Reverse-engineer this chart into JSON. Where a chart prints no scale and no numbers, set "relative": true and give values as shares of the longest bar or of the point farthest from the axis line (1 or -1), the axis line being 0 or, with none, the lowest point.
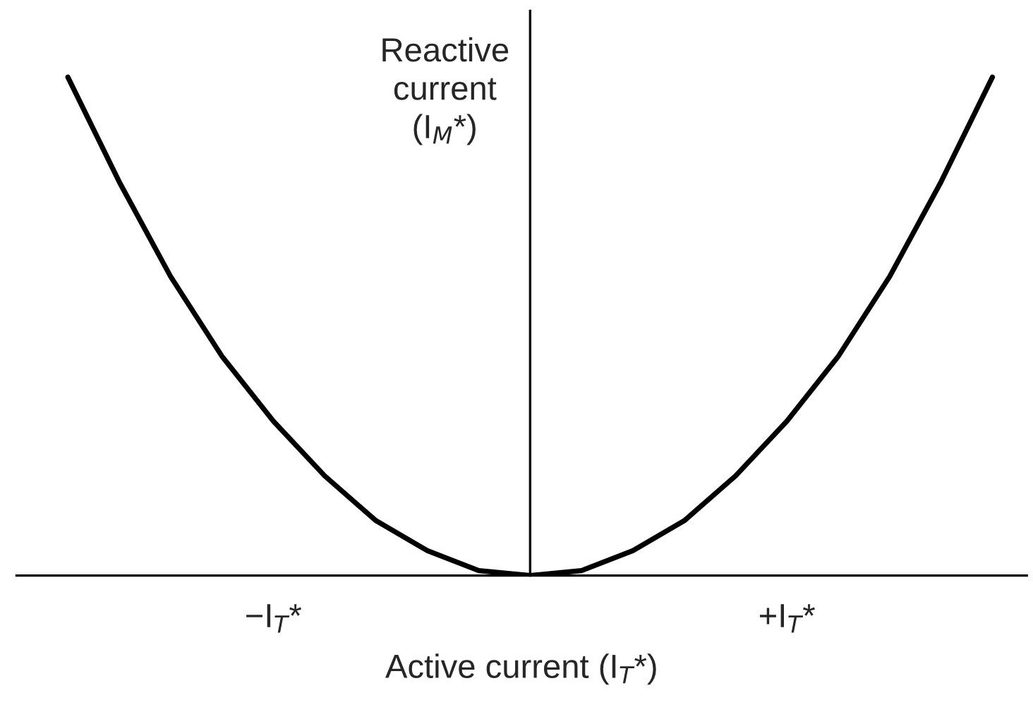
{
  "chart_data": {
    "type": "line",
    "relative": true,
    "color": "#000000",
    "xlabel": "Active current (I$_{T}$*)",
    "ylabel": "Reactive\ncurrent\n(I$_{M}$*)",
    "categories": [
      null,
      null,
      null,
      null,
      "−I$_{T}$*",
      null,
      null,
      null,
      null,
      null,
      null,
      null,
      null,
      null,
      "+I$_{T}$*",
      null,
      null,
      null,
      null
    ],
    "values": [
      1,
      0.79,
      0.6,
      0.44,
      0.31,
      0.2,
      0.11,
      0.05,
      0.01,
      0,
      0.01,
      0.05,
      0.11,
      0.2,
      0.31,
      0.44,
      0.6,
      0.79,
      1
    ],
    "legend": false,
    "marker": "none",
    "line_style": "solid"
  }
}
